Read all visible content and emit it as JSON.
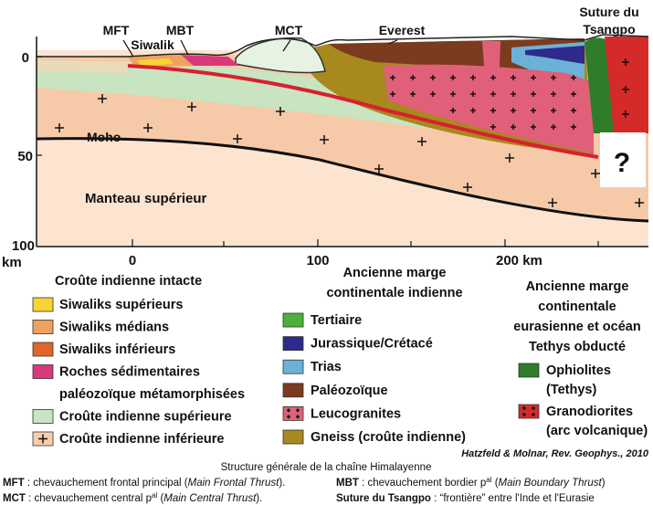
{
  "section": {
    "labels": {
      "mft": "MFT",
      "mbt": "MBT",
      "siwalik": "Siwalik",
      "mct": "MCT",
      "everest": "Everest",
      "suture": [
        "Suture du",
        "Tsangpo"
      ],
      "moho": "Moho",
      "mantle": "Manteau supérieur",
      "unknown": "?"
    },
    "depth_labels": [
      "0",
      "50",
      "100"
    ],
    "depth_unit": "km",
    "distance_labels": [
      "0",
      "100",
      "200 km"
    ]
  },
  "legend": {
    "groups": [
      {
        "title_lines": [
          "Croûte indienne intacte"
        ],
        "items": [
          {
            "label_lines": [
              "Siwaliks supérieurs"
            ],
            "color": "#f6d535"
          },
          {
            "label_lines": [
              "Siwaliks médians"
            ],
            "color": "#f1a15e"
          },
          {
            "label_lines": [
              "Siwaliks inférieurs"
            ],
            "color": "#e0652a"
          },
          {
            "label_lines": [
              "Roches sédimentaires",
              "paléozoïque métamorphisées"
            ],
            "color": "#d9387a"
          },
          {
            "label_lines": [
              "Croûte indienne supérieure"
            ],
            "color": "#c8e6c4"
          },
          {
            "label_lines": [
              "Croûte indienne inférieure"
            ],
            "color": "#f7cfae",
            "pattern": "plus"
          }
        ]
      },
      {
        "title_lines": [
          "Ancienne marge",
          "continentale indienne"
        ],
        "items": [
          {
            "label_lines": [
              "Tertiaire"
            ],
            "color": "#4caf3a"
          },
          {
            "label_lines": [
              "Jurassique/Crétacé"
            ],
            "color": "#2d2a8c"
          },
          {
            "label_lines": [
              "Trias"
            ],
            "color": "#6bb2d6"
          },
          {
            "label_lines": [
              "Paléozoïque"
            ],
            "color": "#7b3b1e"
          },
          {
            "label_lines": [
              "Leucogranites"
            ],
            "color": "#e0607a",
            "pattern": "plus"
          },
          {
            "label_lines": [
              "Gneiss (croûte indienne)"
            ],
            "color": "#a8891e"
          }
        ]
      },
      {
        "title_lines": [
          "Ancienne marge",
          "continentale",
          "eurasienne et océan",
          "Tethys obducté"
        ],
        "items": [
          {
            "label_lines": [
              "Ophiolites",
              "(Tethys)"
            ],
            "color": "#2f7d2a"
          },
          {
            "label_lines": [
              "Granodiorites",
              "(arc volcanique)"
            ],
            "color": "#d42a2a",
            "pattern": "plus"
          }
        ]
      }
    ]
  },
  "citation": "Hatzfeld & Molnar, Rev. Geophys., 2010",
  "caption": "Structure générale de la chaîne Himalayenne",
  "footnotes": [
    {
      "parts": [
        {
          "text": "MFT",
          "style": "b"
        },
        {
          "text": " : chevauchement frontal principal ("
        },
        {
          "text": "Main Frontal Thrust",
          "style": "i"
        },
        {
          "text": ")."
        }
      ]
    },
    {
      "parts": [
        {
          "text": "MBT",
          "style": "b"
        },
        {
          "text": " : chevauchement bordier p"
        },
        {
          "text": "al",
          "style": "sup"
        },
        {
          "text": " ("
        },
        {
          "text": "Main Boundary Thrust",
          "style": "i"
        },
        {
          "text": ")"
        }
      ]
    },
    {
      "parts": [
        {
          "text": "MCT",
          "style": "b"
        },
        {
          "text": " : chevauchement central p"
        },
        {
          "text": "al",
          "style": "sup"
        },
        {
          "text": " ("
        },
        {
          "text": "Main Central Thrust",
          "style": "i"
        },
        {
          "text": ")."
        }
      ]
    },
    {
      "parts": [
        {
          "text": "Suture du Tsangpo",
          "style": "b"
        },
        {
          "text": " : “frontière” entre l'Inde et l'Eurasie"
        }
      ]
    }
  ]
}
